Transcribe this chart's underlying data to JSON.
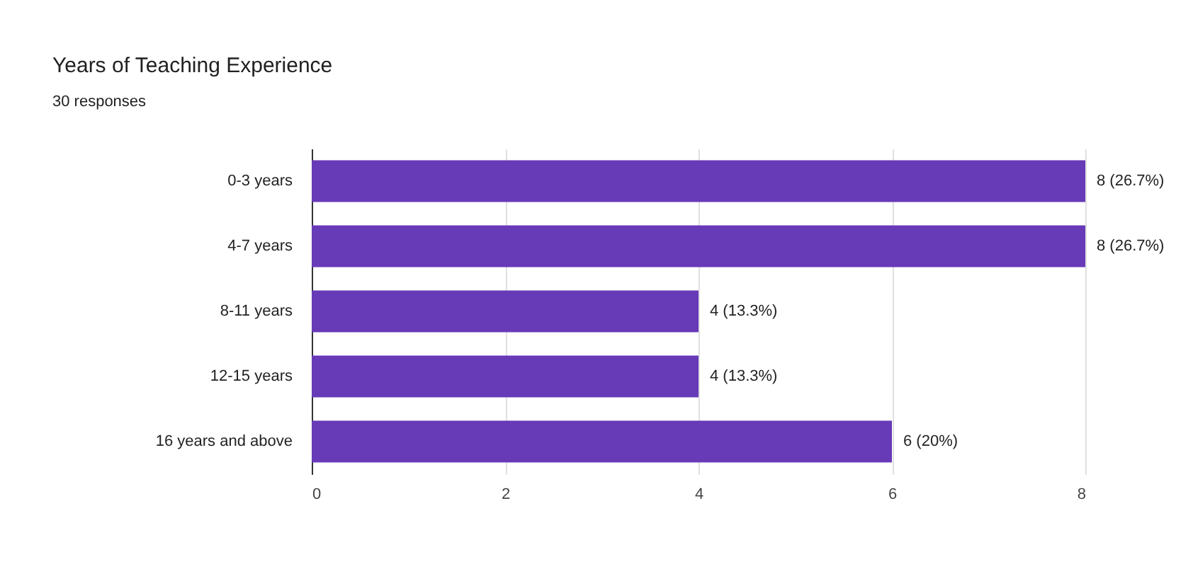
{
  "chart_data": {
    "type": "bar",
    "orientation": "horizontal",
    "title": "Years of Teaching Experience",
    "subtitle": "30 responses",
    "categories": [
      "0-3 years",
      "4-7 years",
      "8-11 years",
      "12-15 years",
      "16 years and above"
    ],
    "values": [
      8,
      8,
      4,
      4,
      6
    ],
    "value_labels": [
      "8 (26.7%)",
      "8 (26.7%)",
      "4 (13.3%)",
      "4 (13.3%)",
      "6 (20%)"
    ],
    "color": "#673ab7",
    "xlim": [
      0,
      8
    ],
    "xticks": [
      0,
      2,
      4,
      6,
      8
    ],
    "grid": "x"
  }
}
